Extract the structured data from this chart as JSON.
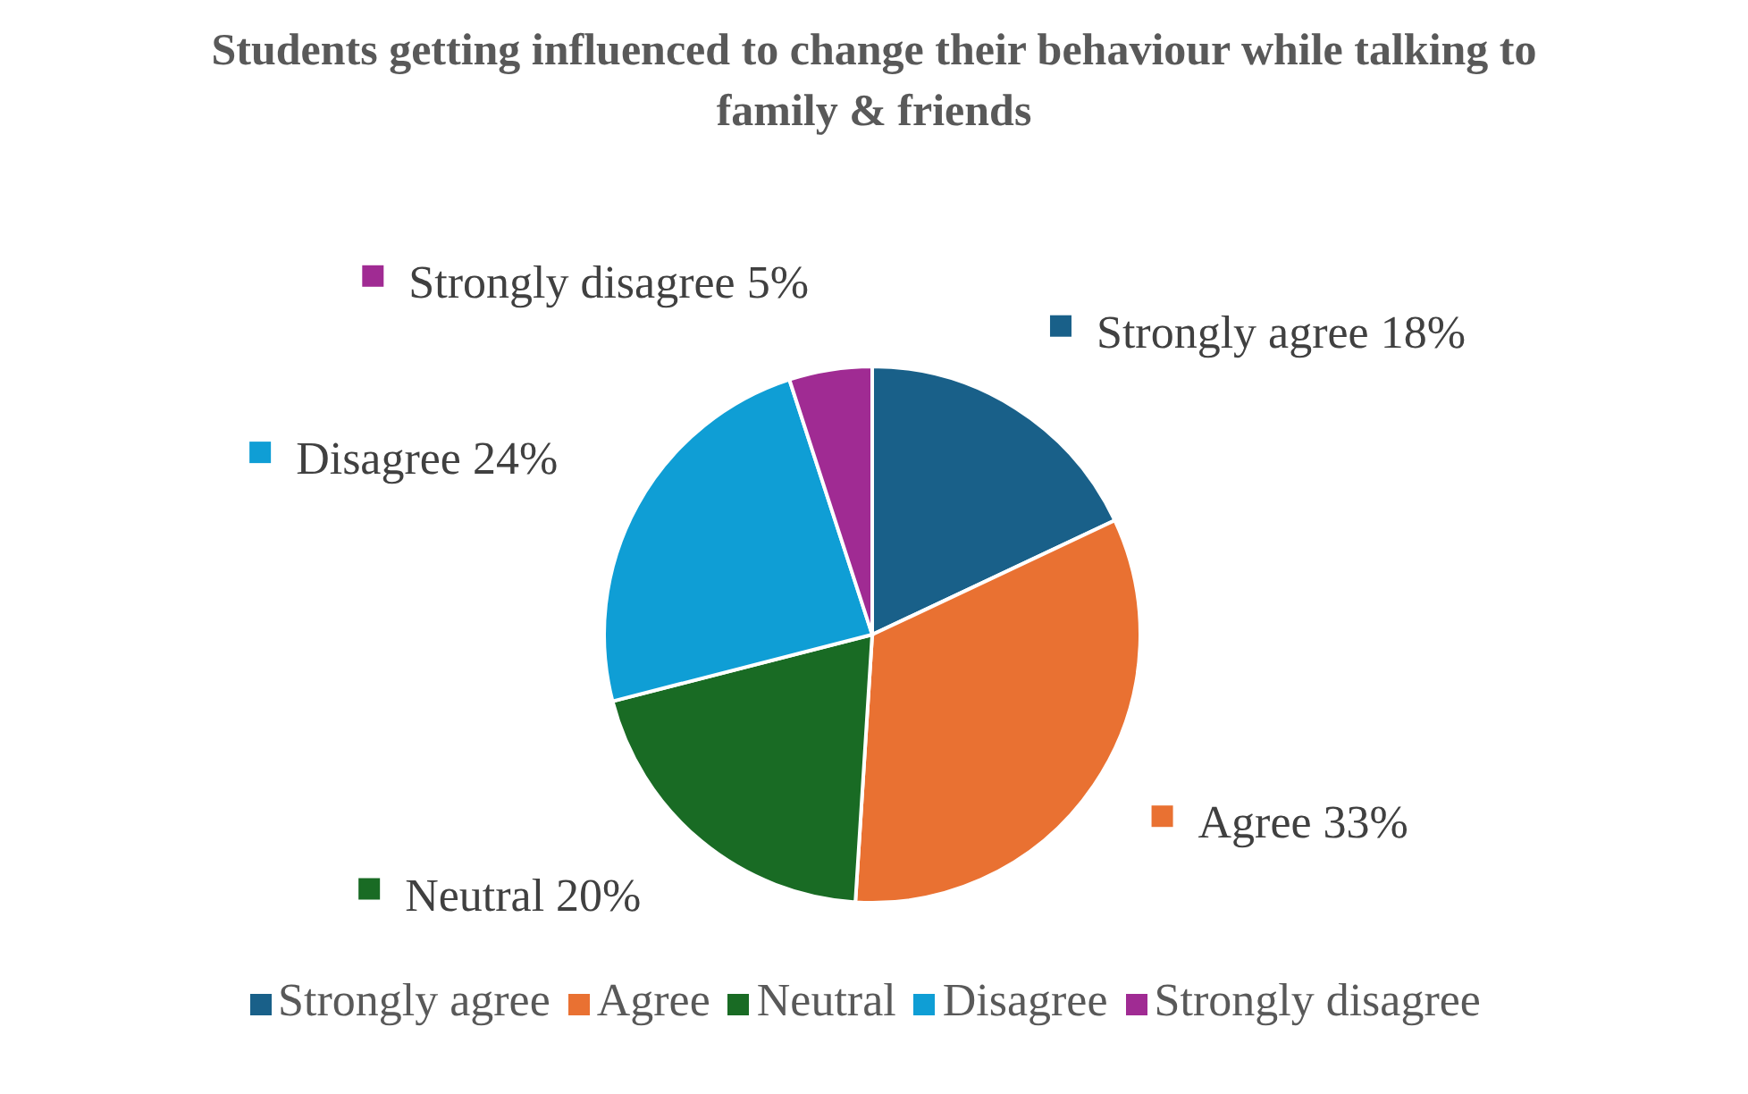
{
  "chart_data": {
    "type": "pie",
    "title": "Students getting influenced to change their behaviour while talking to family & friends",
    "categories": [
      "Strongly agree",
      "Agree",
      "Neutral",
      "Disagree",
      "Strongly disagree"
    ],
    "values": [
      18,
      33,
      20,
      24,
      5
    ],
    "colors": [
      "#196089",
      "#e97132",
      "#196b24",
      "#0f9ed5",
      "#a02b93"
    ],
    "value_labels": [
      "18%",
      "33%",
      "20%",
      "24%",
      "5%"
    ],
    "legend": "bottom"
  }
}
